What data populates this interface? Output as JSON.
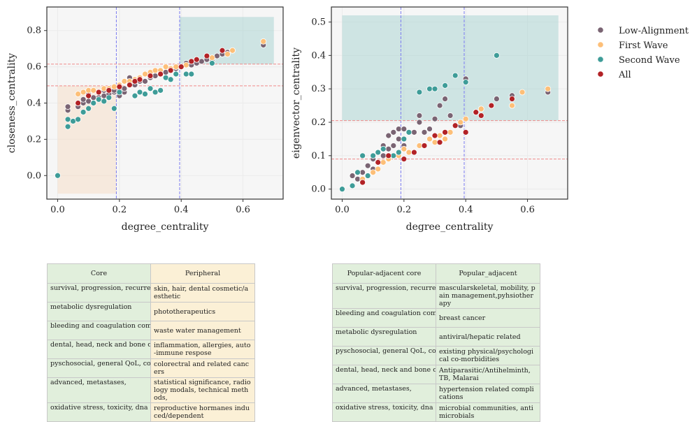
{
  "colors": {
    "low": "#7a6473",
    "first": "#fdbf78",
    "second": "#3e9c98",
    "all": "#b22226",
    "peach": "#f6dcc3",
    "teal": "#a6d1cf",
    "core_bg": "#e1efdc",
    "periph_bg": "#fbf0d6",
    "grid": "#ebebeb",
    "panel": "#f6f6f6"
  },
  "legend": {
    "items": [
      {
        "label": "Low-Alignment",
        "key": "low"
      },
      {
        "label": "First Wave",
        "key": "first"
      },
      {
        "label": "Second Wave",
        "key": "second"
      },
      {
        "label": "All",
        "key": "all"
      }
    ]
  },
  "chart_data": [
    {
      "type": "scatter",
      "xlabel": "degree_centrality",
      "ylabel": "closeness_centrality",
      "xlim": [
        -0.035,
        0.73
      ],
      "ylim": [
        -0.13,
        0.93
      ],
      "xticks": [
        0.0,
        0.2,
        0.4,
        0.6
      ],
      "xtick_labels": [
        "0.0",
        "0.2",
        "0.4",
        "0.6"
      ],
      "yticks": [
        0.0,
        0.2,
        0.4,
        0.6,
        0.8
      ],
      "ytick_labels": [
        "0.0",
        "0.2",
        "0.4",
        "0.6",
        "0.8"
      ],
      "vlines": [
        0.19,
        0.395
      ],
      "hlines": [
        0.495,
        0.615
      ],
      "regions": [
        {
          "x0": 0.0,
          "x1": 0.19,
          "y0": -0.1,
          "y1": 0.495,
          "color": "peach"
        },
        {
          "x0": 0.395,
          "x1": 0.7,
          "y0": 0.615,
          "y1": 0.875,
          "color": "teal"
        }
      ],
      "series": [
        {
          "name": "Low-Alignment",
          "key": "low",
          "x": [
            0.033,
            0.033,
            0.066,
            0.066,
            0.083,
            0.083,
            0.1,
            0.1,
            0.116,
            0.133,
            0.133,
            0.15,
            0.15,
            0.166,
            0.166,
            0.183,
            0.183,
            0.2,
            0.2,
            0.216,
            0.216,
            0.233,
            0.233,
            0.25,
            0.266,
            0.283,
            0.3,
            0.316,
            0.333,
            0.35,
            0.366,
            0.383,
            0.4,
            0.416,
            0.433,
            0.45,
            0.466,
            0.483,
            0.5,
            0.516,
            0.533,
            0.55,
            0.566,
            0.666
          ],
          "y": [
            0.36,
            0.38,
            0.38,
            0.4,
            0.4,
            0.42,
            0.41,
            0.45,
            0.43,
            0.43,
            0.46,
            0.44,
            0.47,
            0.45,
            0.48,
            0.46,
            0.47,
            0.44,
            0.47,
            0.46,
            0.48,
            0.5,
            0.54,
            0.5,
            0.52,
            0.52,
            0.54,
            0.55,
            0.56,
            0.57,
            0.58,
            0.59,
            0.6,
            0.62,
            0.61,
            0.62,
            0.63,
            0.64,
            0.64,
            0.66,
            0.67,
            0.68,
            0.69,
            0.72
          ]
        },
        {
          "name": "First Wave",
          "key": "first",
          "x": [
            0.066,
            0.083,
            0.1,
            0.116,
            0.133,
            0.15,
            0.166,
            0.183,
            0.2,
            0.216,
            0.233,
            0.25,
            0.266,
            0.283,
            0.3,
            0.316,
            0.333,
            0.35,
            0.366,
            0.383,
            0.416,
            0.45,
            0.5,
            0.55,
            0.566,
            0.666
          ],
          "y": [
            0.45,
            0.46,
            0.47,
            0.47,
            0.46,
            0.48,
            0.48,
            0.49,
            0.5,
            0.52,
            0.52,
            0.53,
            0.54,
            0.56,
            0.57,
            0.58,
            0.58,
            0.6,
            0.59,
            0.6,
            0.61,
            0.64,
            0.65,
            0.67,
            0.69,
            0.74
          ]
        },
        {
          "name": "Second Wave",
          "key": "second",
          "x": [
            0.0,
            0.033,
            0.033,
            0.05,
            0.066,
            0.083,
            0.1,
            0.116,
            0.133,
            0.15,
            0.166,
            0.183,
            0.2,
            0.25,
            0.266,
            0.283,
            0.3,
            0.316,
            0.333,
            0.35,
            0.366,
            0.383,
            0.416,
            0.433,
            0.5
          ],
          "y": [
            0.0,
            0.27,
            0.31,
            0.3,
            0.31,
            0.35,
            0.37,
            0.4,
            0.42,
            0.41,
            0.43,
            0.37,
            0.46,
            0.44,
            0.46,
            0.45,
            0.48,
            0.46,
            0.47,
            0.54,
            0.53,
            0.56,
            0.56,
            0.56,
            0.62
          ]
        },
        {
          "name": "All",
          "key": "all",
          "x": [
            0.066,
            0.1,
            0.133,
            0.166,
            0.2,
            0.233,
            0.25,
            0.266,
            0.3,
            0.333,
            0.366,
            0.4,
            0.433,
            0.45,
            0.483,
            0.533
          ],
          "y": [
            0.4,
            0.44,
            0.46,
            0.47,
            0.49,
            0.5,
            0.52,
            0.53,
            0.55,
            0.56,
            0.58,
            0.6,
            0.63,
            0.64,
            0.66,
            0.69
          ]
        }
      ]
    },
    {
      "type": "scatter",
      "xlabel": "degree_centrality",
      "ylabel": "eigenvector_centrality",
      "xlim": [
        -0.035,
        0.73
      ],
      "ylim": [
        -0.03,
        0.545
      ],
      "xticks": [
        0.0,
        0.2,
        0.4,
        0.6
      ],
      "xtick_labels": [
        "0.0",
        "0.2",
        "0.4",
        "0.6"
      ],
      "yticks": [
        0.0,
        0.1,
        0.2,
        0.3,
        0.4,
        0.5
      ],
      "ytick_labels": [
        "0.0",
        "0.1",
        "0.2",
        "0.3",
        "0.4",
        "0.5"
      ],
      "vlines": [
        0.19,
        0.395
      ],
      "hlines": [
        0.09,
        0.205
      ],
      "regions": [
        {
          "x0": 0.0,
          "x1": 0.7,
          "y0": 0.205,
          "y1": 0.52,
          "color": "teal"
        }
      ],
      "series": [
        {
          "name": "Low-Alignment",
          "key": "low",
          "x": [
            0.033,
            0.033,
            0.05,
            0.066,
            0.083,
            0.1,
            0.1,
            0.116,
            0.116,
            0.133,
            0.133,
            0.15,
            0.15,
            0.166,
            0.166,
            0.183,
            0.183,
            0.183,
            0.2,
            0.2,
            0.216,
            0.233,
            0.25,
            0.25,
            0.266,
            0.283,
            0.3,
            0.316,
            0.333,
            0.35,
            0.383,
            0.4,
            0.4,
            0.433,
            0.45,
            0.483,
            0.5,
            0.55,
            0.666
          ],
          "y": [
            0.01,
            0.04,
            0.03,
            0.05,
            0.07,
            0.06,
            0.09,
            0.08,
            0.11,
            0.1,
            0.13,
            0.12,
            0.16,
            0.13,
            0.17,
            0.1,
            0.15,
            0.18,
            0.13,
            0.18,
            0.17,
            0.17,
            0.2,
            0.22,
            0.17,
            0.18,
            0.21,
            0.25,
            0.27,
            0.22,
            0.19,
            0.33,
            0.32,
            0.23,
            0.24,
            0.25,
            0.27,
            0.28,
            0.29
          ]
        },
        {
          "name": "First Wave",
          "key": "first",
          "x": [
            0.066,
            0.1,
            0.116,
            0.133,
            0.15,
            0.166,
            0.183,
            0.2,
            0.216,
            0.233,
            0.25,
            0.266,
            0.283,
            0.3,
            0.316,
            0.333,
            0.35,
            0.383,
            0.4,
            0.433,
            0.45,
            0.483,
            0.55,
            0.583,
            0.666
          ],
          "y": [
            0.03,
            0.05,
            0.06,
            0.08,
            0.09,
            0.1,
            0.1,
            0.12,
            0.11,
            0.11,
            0.13,
            0.13,
            0.15,
            0.14,
            0.16,
            0.15,
            0.17,
            0.2,
            0.21,
            0.23,
            0.24,
            0.25,
            0.25,
            0.29,
            0.3
          ]
        },
        {
          "name": "Second Wave",
          "key": "second",
          "x": [
            0.0,
            0.033,
            0.05,
            0.066,
            0.083,
            0.1,
            0.116,
            0.133,
            0.166,
            0.183,
            0.2,
            0.216,
            0.25,
            0.283,
            0.3,
            0.333,
            0.366,
            0.4,
            0.433,
            0.5
          ],
          "y": [
            0.0,
            0.01,
            0.05,
            0.1,
            0.04,
            0.1,
            0.11,
            0.12,
            0.1,
            0.11,
            0.15,
            0.17,
            0.29,
            0.3,
            0.3,
            0.31,
            0.34,
            0.32,
            0.23,
            0.4
          ]
        },
        {
          "name": "All",
          "key": "all",
          "x": [
            0.066,
            0.116,
            0.15,
            0.2,
            0.233,
            0.266,
            0.3,
            0.316,
            0.333,
            0.366,
            0.4,
            0.433,
            0.45,
            0.483,
            0.55
          ],
          "y": [
            0.02,
            0.08,
            0.1,
            0.09,
            0.11,
            0.13,
            0.16,
            0.14,
            0.17,
            0.19,
            0.17,
            0.23,
            0.22,
            0.25,
            0.27
          ]
        }
      ]
    }
  ],
  "table_left": {
    "headers": [
      "Core",
      "Peripheral"
    ],
    "rows": [
      [
        "survival, progression, recurrence",
        "skin, hair, dental cosmetic/aesthetic"
      ],
      [
        "metabolic dysregulation",
        "phototherapeutics"
      ],
      [
        "bleeding and coagulation complications",
        "waste water management"
      ],
      [
        "dental, head, neck and bone cancers",
        "inflammation, allergies, auto-immune respose"
      ],
      [
        "pyschosocial, general QoL, coping",
        "colorectral and related cancers"
      ],
      [
        "advanced, metastases,",
        "statistical significance, radiology modals, technical methods,"
      ],
      [
        "oxidative stress, toxicity, dna damage, immunity, pharmacokinetics, anti-tumor",
        "reproductive hormanes induced/dependent"
      ]
    ]
  },
  "table_right": {
    "headers": [
      "Popular-adjacent core",
      "Popular_adjacent"
    ],
    "rows": [
      [
        "survival, progression, recurrence",
        "mascularskeletal, mobility, pain management,pyhsiotherapy"
      ],
      [
        "bleeding and coagulation complications",
        "breast cancer"
      ],
      [
        "metabolic dysregulation",
        "antiviral/hepatic related"
      ],
      [
        "pyschosocial, general QoL, coping",
        "existing physical/psychological co-morbidities"
      ],
      [
        "dental, head, neck and bone cancers",
        "Antiparasitic/Antihelminth, TB, Malarai"
      ],
      [
        "advanced, metastases,",
        "hypertension related complications"
      ],
      [
        "oxidative stress, toxicity, dna damage, immunity, pharmacokinetics, anti-tumor",
        "microbial communities, antimicrobials"
      ]
    ]
  }
}
